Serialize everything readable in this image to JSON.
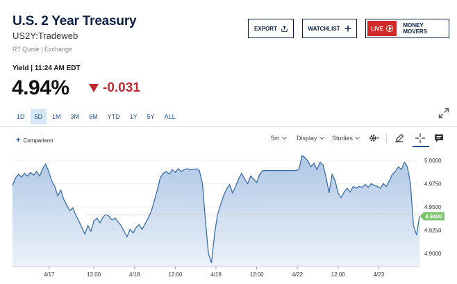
{
  "header": {
    "title": "U.S. 2 Year Treasury",
    "symbol": "US2Y:Tradeweb",
    "quote_type": "RT Quote | Exchange"
  },
  "buttons": {
    "export": "EXPORT",
    "watchlist": "WATCHLIST",
    "live": "LIVE",
    "money_movers": "MONEY MOVERS"
  },
  "quote": {
    "yield_label": "Yield | 11:24 AM EDT",
    "price": "4.94%",
    "change": "-0.031",
    "change_color": "#c0282d"
  },
  "ranges": [
    "1D",
    "5D",
    "1M",
    "3M",
    "6M",
    "YTD",
    "1Y",
    "5Y",
    "ALL"
  ],
  "active_range": "5D",
  "toolbar": {
    "comparison_label": "Comparison",
    "interval": "5m",
    "display": "Display",
    "studies": "Studies"
  },
  "chart_data": {
    "type": "area",
    "title": "",
    "xlabel": "",
    "ylabel": "",
    "ylim": [
      4.886,
      5.011
    ],
    "x_ticks": [
      {
        "label": "4/17",
        "x": 0.09
      },
      {
        "label": "12:00",
        "x": 0.2
      },
      {
        "label": "4/18",
        "x": 0.3
      },
      {
        "label": "12:00",
        "x": 0.4
      },
      {
        "label": "4/19",
        "x": 0.5
      },
      {
        "label": "12:00",
        "x": 0.6
      },
      {
        "label": "4/22",
        "x": 0.7
      },
      {
        "label": "12:00",
        "x": 0.8
      },
      {
        "label": "4/23",
        "x": 0.9
      }
    ],
    "y_ticks": [
      5.0,
      4.975,
      4.95,
      4.925,
      4.9
    ],
    "y_tick_labels": [
      "5.0000",
      "4.9750",
      "4.9500",
      "4.9250",
      "4.9000"
    ],
    "last_value": 4.94,
    "last_value_label": "4.9400",
    "reference_level": 4.9415,
    "line_color": "#3a6ea8",
    "fill_color": "#b9cde6",
    "label_color": "#7cc46a",
    "series": [
      {
        "values": [
          4.973,
          4.981,
          4.985,
          4.982,
          4.986,
          4.983,
          4.987,
          4.984,
          4.988,
          4.983,
          4.991,
          4.996,
          4.988,
          4.978,
          4.972,
          4.962,
          4.968,
          4.958,
          4.952,
          4.946,
          4.949,
          4.941,
          4.935,
          4.928,
          4.921,
          4.93,
          4.924,
          4.935,
          4.938,
          4.933,
          4.939,
          4.942,
          4.94,
          4.936,
          4.938,
          4.934,
          4.93,
          4.924,
          4.918,
          4.926,
          4.922,
          4.928,
          4.931,
          4.926,
          4.932,
          4.938,
          4.945,
          4.956,
          4.968,
          4.981,
          4.986,
          4.988,
          4.985,
          4.99,
          4.987,
          4.991,
          4.988,
          4.99,
          4.991,
          4.99,
          4.99,
          4.991,
          4.989,
          4.975,
          4.935,
          4.9,
          4.89,
          4.92,
          4.942,
          4.952,
          4.962,
          4.969,
          4.974,
          4.965,
          4.972,
          4.98,
          4.986,
          4.98,
          4.975,
          4.983,
          4.98,
          4.976,
          4.985,
          4.989,
          4.989,
          4.989,
          4.989,
          4.989,
          4.989,
          4.989,
          4.989,
          4.989,
          4.989,
          4.989,
          4.989,
          4.99,
          5.005,
          5.003,
          4.999,
          4.993,
          4.997,
          4.99,
          4.998,
          4.995,
          4.982,
          4.965,
          4.985,
          4.978,
          4.965,
          4.96,
          4.966,
          4.97,
          4.966,
          4.972,
          4.97,
          4.972,
          4.971,
          4.974,
          4.971,
          4.975,
          4.973,
          4.972,
          4.97,
          4.975,
          4.972,
          4.978,
          4.985,
          4.988,
          4.993,
          4.99,
          4.998,
          4.993,
          4.975,
          4.93,
          4.92,
          4.94
        ]
      }
    ]
  }
}
